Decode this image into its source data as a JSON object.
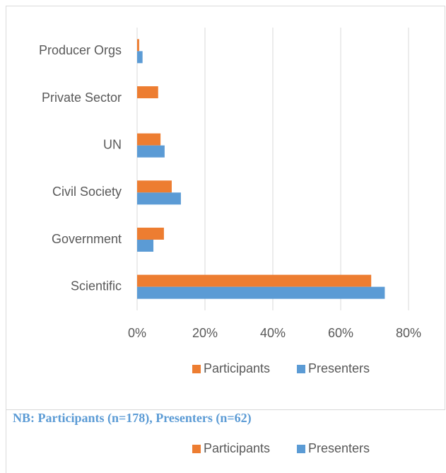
{
  "chart_data": {
    "type": "bar",
    "orientation": "horizontal",
    "categories": [
      "Producer Orgs",
      "Private Sector",
      "UN",
      "Civil Society",
      "Government",
      "Scientific"
    ],
    "series": [
      {
        "name": "Participants",
        "color": "#ed7d31",
        "values": [
          0.6,
          6.2,
          6.9,
          10.2,
          7.9,
          69
        ]
      },
      {
        "name": "Presenters",
        "color": "#5b9bd5",
        "values": [
          1.6,
          0,
          8.1,
          12.9,
          4.8,
          73
        ]
      }
    ],
    "xlim": [
      0,
      80
    ],
    "xticks": [
      {
        "value": 0,
        "label": "0%"
      },
      {
        "value": 20,
        "label": "20%"
      },
      {
        "value": 40,
        "label": "40%"
      },
      {
        "value": 60,
        "label": "60%"
      },
      {
        "value": 80,
        "label": "80%"
      }
    ],
    "grid": true,
    "legend": "bottom"
  },
  "note": "NB: Participants (n=178), Presenters (n=62)"
}
